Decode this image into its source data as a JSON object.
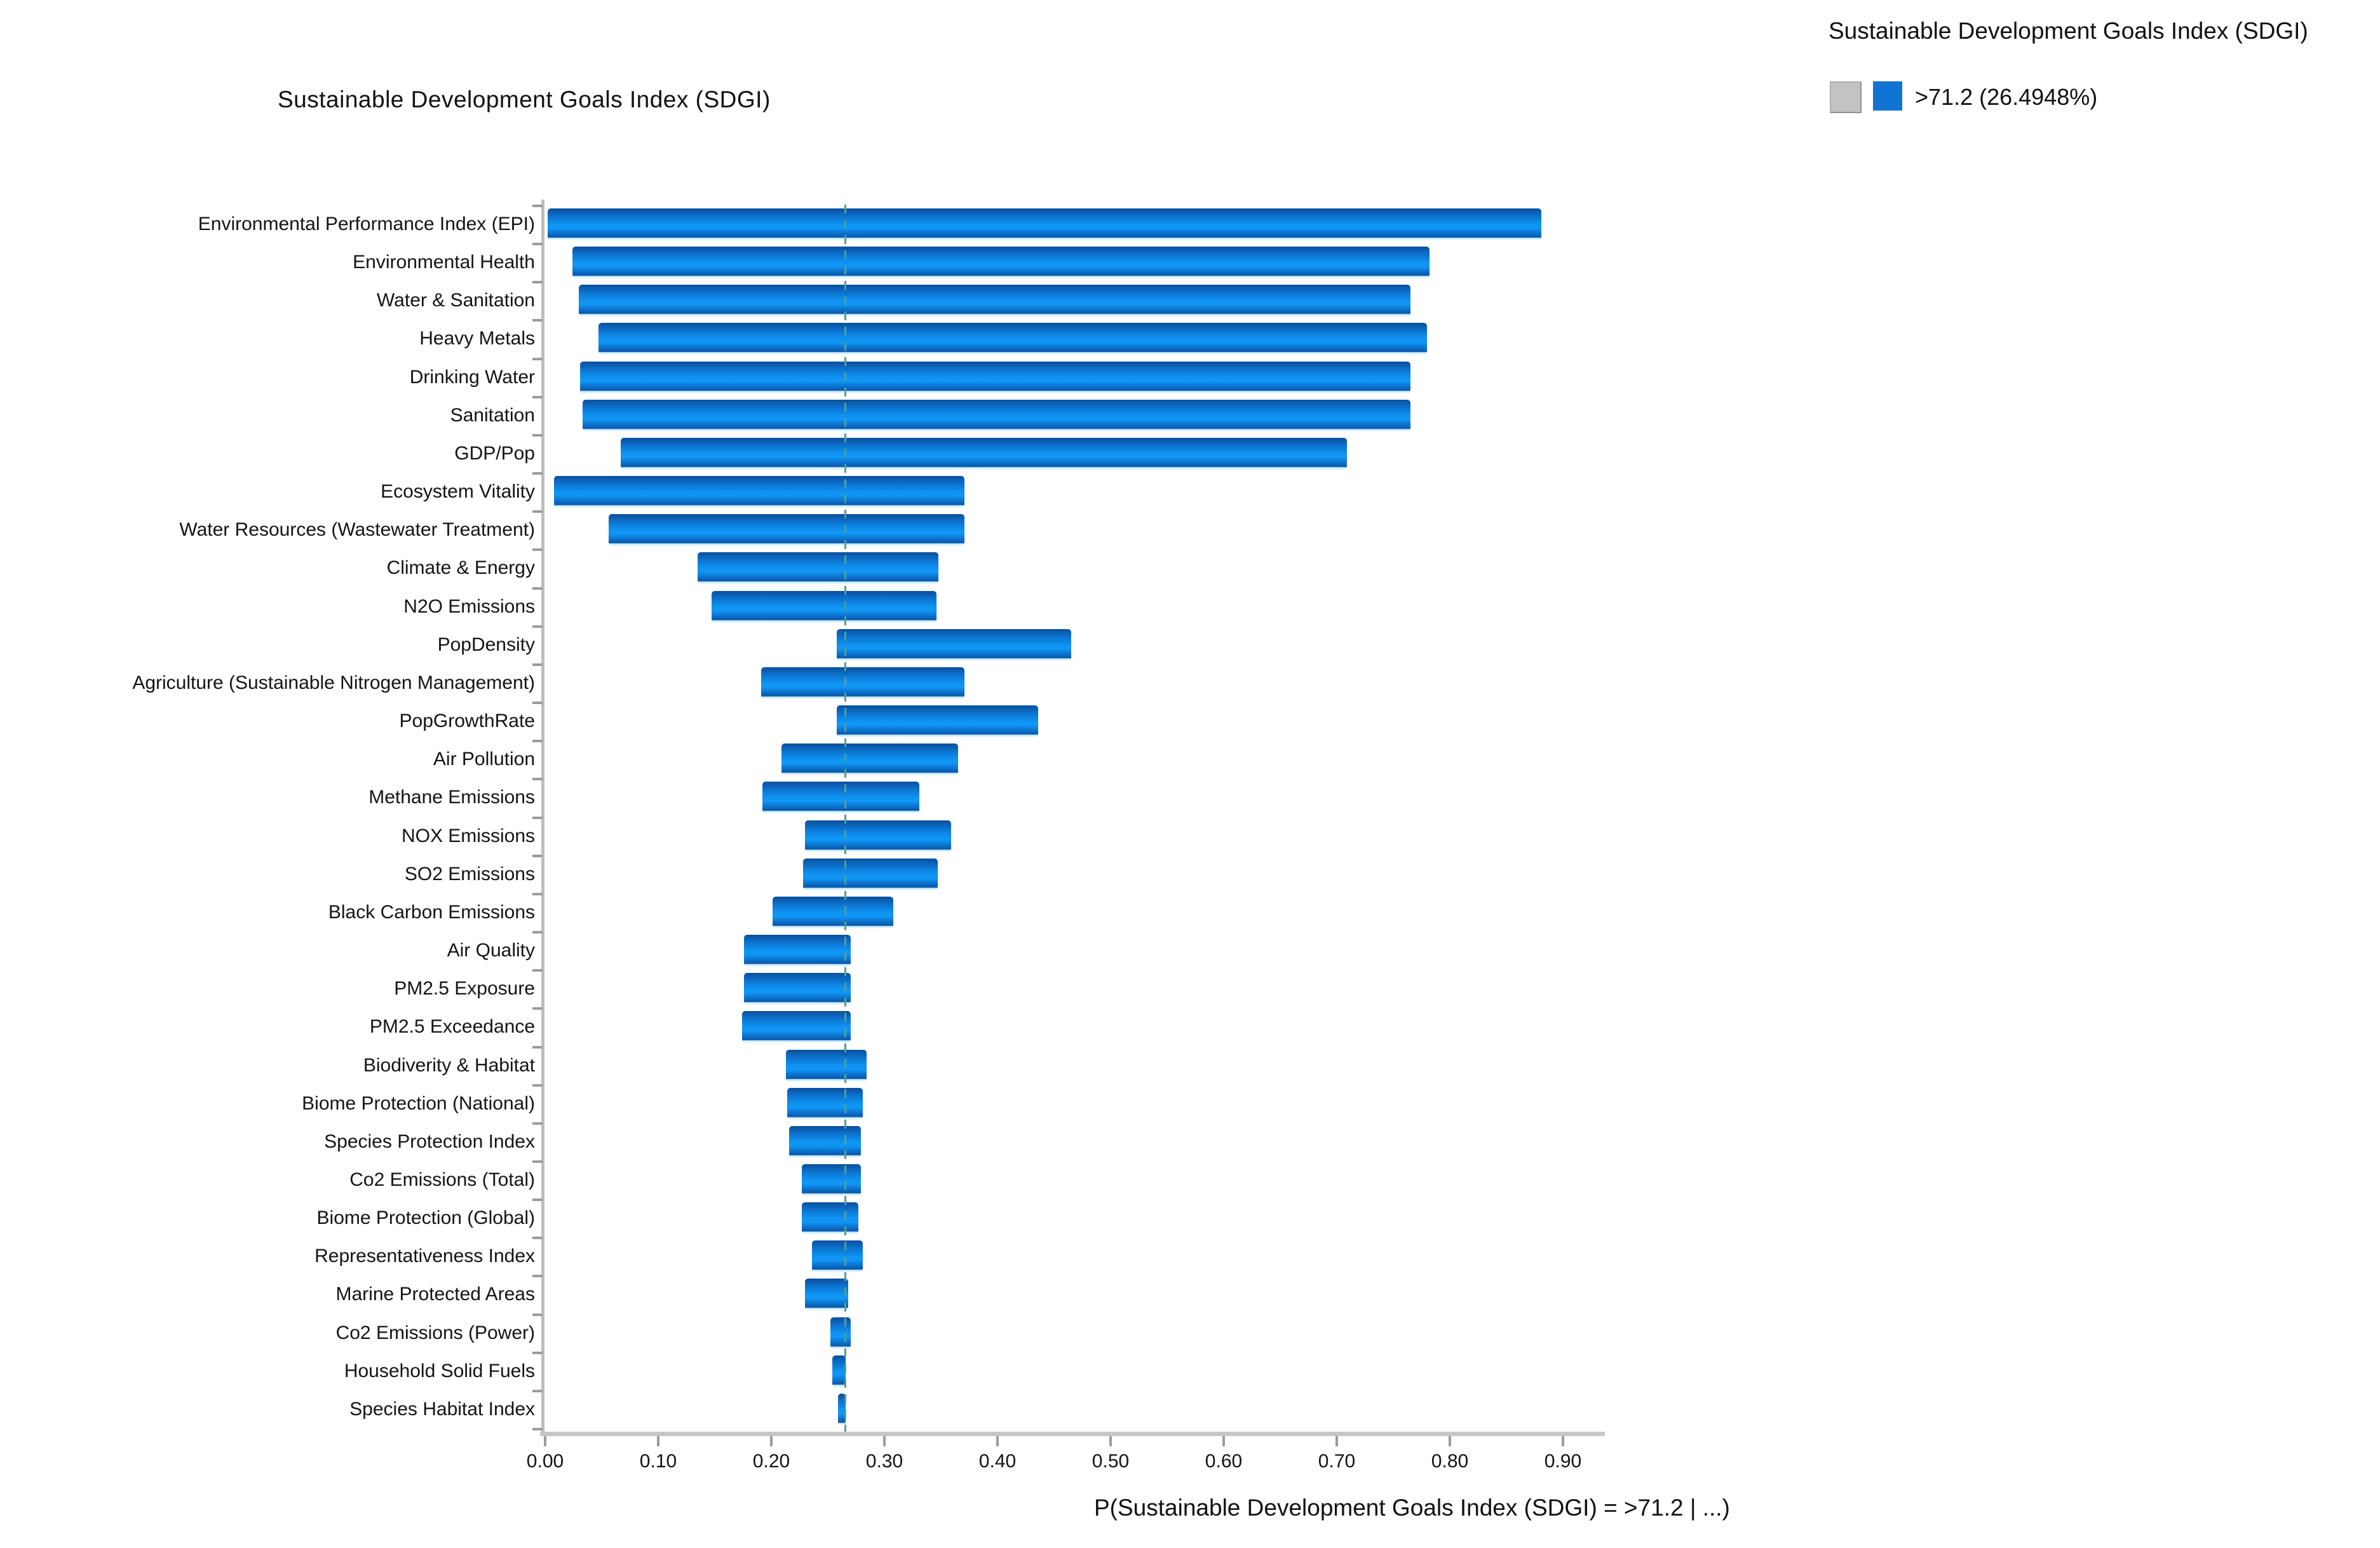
{
  "figure": {
    "title": "Sustainable Development Goals Index (SDGI)",
    "xlabel": "P(Sustainable Development Goals Index (SDGI) = >71.2 | ...)"
  },
  "legend": {
    "title": "Sustainable Development Goals Index (SDGI)",
    "entry": ">71.2 (26.4948%)",
    "muted_swatch_color": "#c3c3c3",
    "active_swatch_color": "#1173d2"
  },
  "chart_data": {
    "type": "bar",
    "subtype": "tornado-range",
    "orientation": "horizontal",
    "title": "Sustainable Development Goals Index (SDGI)",
    "xlabel": "P(Sustainable Development Goals Index (SDGI) = >71.2 | ...)",
    "baseline_value": 0.2649,
    "baseline_percent_label": "26.4948%",
    "xlim": [
      0.0,
      0.92
    ],
    "xtick_labels": [
      "0.00",
      "0.10",
      "0.20",
      "0.30",
      "0.40",
      "0.50",
      "0.60",
      "0.70",
      "0.80",
      "0.90"
    ],
    "grid": false,
    "legend_position": "top-right",
    "bar_color": "#0f86e0",
    "categories": [
      "Environmental Performance Index (EPI)",
      "Environmental Health",
      "Water & Sanitation",
      "Heavy Metals",
      "Drinking Water",
      "Sanitation",
      "GDP/Pop",
      "Ecosystem Vitality",
      "Water Resources (Wastewater Treatment)",
      "Climate & Energy",
      "N2O Emissions",
      "PopDensity",
      "Agriculture (Sustainable Nitrogen Management)",
      "PopGrowthRate",
      "Air Pollution",
      "Methane Emissions",
      "NOX Emissions",
      "SO2 Emissions",
      "Black Carbon Emissions",
      "Air Quality",
      "PM2.5 Exposure",
      "PM2.5 Exceedance",
      "Biodiverity & Habitat",
      "Biome Protection (National)",
      "Species Protection Index",
      "Co2 Emissions (Total)",
      "Biome Protection (Global)",
      "Representativeness Index",
      "Marine Protected Areas",
      "Co2 Emissions (Power)",
      "Household Solid Fuels",
      "Species Habitat Index"
    ],
    "ranges": [
      [
        0.002,
        0.881
      ],
      [
        0.024,
        0.782
      ],
      [
        0.03,
        0.765
      ],
      [
        0.047,
        0.78
      ],
      [
        0.031,
        0.765
      ],
      [
        0.033,
        0.765
      ],
      [
        0.067,
        0.709
      ],
      [
        0.008,
        0.371
      ],
      [
        0.056,
        0.371
      ],
      [
        0.135,
        0.348
      ],
      [
        0.147,
        0.346
      ],
      [
        0.258,
        0.465
      ],
      [
        0.191,
        0.371
      ],
      [
        0.258,
        0.436
      ],
      [
        0.209,
        0.365
      ],
      [
        0.192,
        0.331
      ],
      [
        0.23,
        0.359
      ],
      [
        0.228,
        0.347
      ],
      [
        0.201,
        0.308
      ],
      [
        0.176,
        0.27
      ],
      [
        0.176,
        0.27
      ],
      [
        0.174,
        0.27
      ],
      [
        0.213,
        0.284
      ],
      [
        0.214,
        0.281
      ],
      [
        0.216,
        0.279
      ],
      [
        0.227,
        0.279
      ],
      [
        0.227,
        0.277
      ],
      [
        0.236,
        0.281
      ],
      [
        0.23,
        0.268
      ],
      [
        0.252,
        0.27
      ],
      [
        0.254,
        0.266
      ],
      [
        0.259,
        0.266
      ]
    ]
  }
}
